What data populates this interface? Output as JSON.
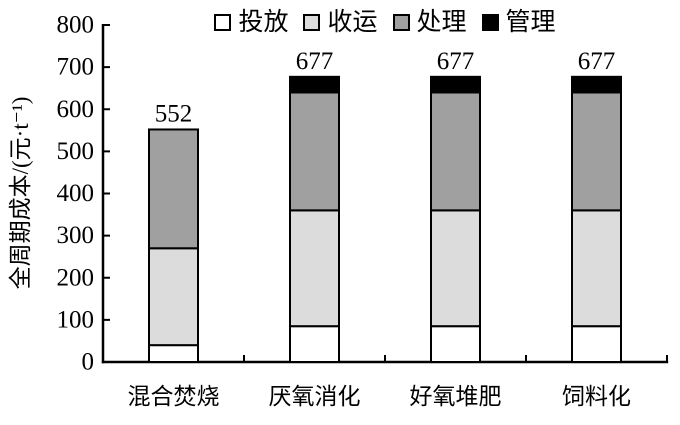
{
  "figure": {
    "background": "#FFFFFF",
    "axis_color": "#000000"
  },
  "chart_data": {
    "type": "bar",
    "stacked": true,
    "grid": false,
    "legend_position": "top-center",
    "title": "",
    "xlabel": "",
    "ylabel": "全周期成本/(元·t⁻¹)",
    "ylim": [
      0,
      800
    ],
    "ytick_step": 100,
    "yticks": [
      0,
      100,
      200,
      300,
      400,
      500,
      600,
      700,
      800
    ],
    "categories": [
      "混合焚烧",
      "厌氧消化",
      "好氧堆肥",
      "饲料化"
    ],
    "series": [
      {
        "name": "投放",
        "color": "#FFFFFF",
        "values": [
          40,
          85,
          85,
          85
        ]
      },
      {
        "name": "收运",
        "color": "#DCDCDC",
        "values": [
          230,
          275,
          275,
          275
        ]
      },
      {
        "name": "处理",
        "color": "#A0A0A0",
        "values": [
          282,
          280,
          280,
          280
        ]
      },
      {
        "name": "管理",
        "color": "#000000",
        "values": [
          0,
          37,
          37,
          37
        ]
      }
    ],
    "totals": [
      552,
      677,
      677,
      677
    ],
    "totals_labels": [
      "552",
      "677",
      "677",
      "677"
    ]
  }
}
